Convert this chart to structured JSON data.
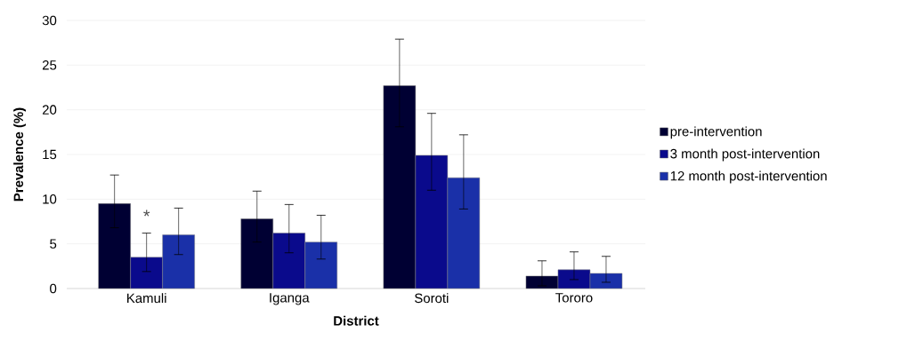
{
  "chart_data": {
    "type": "bar",
    "xlabel": "District",
    "ylabel": "Prevalence (%)",
    "categories": [
      "Kamuli",
      "Iganga",
      "Soroti",
      "Tororo"
    ],
    "series": [
      {
        "name": "pre-intervention",
        "color": "#000033",
        "values": [
          9.5,
          7.8,
          22.7,
          1.4
        ],
        "errors": [
          [
            6.8,
            12.7
          ],
          [
            5.2,
            10.9
          ],
          [
            18.1,
            27.9
          ],
          [
            0.3,
            3.1
          ]
        ]
      },
      {
        "name": "3 month post-intervention",
        "color": "#0a0a8c",
        "values": [
          3.5,
          6.2,
          14.9,
          2.1
        ],
        "errors": [
          [
            1.9,
            6.2
          ],
          [
            4.0,
            9.4
          ],
          [
            11.0,
            19.6
          ],
          [
            1.0,
            4.1
          ]
        ]
      },
      {
        "name": "12 month post-intervention",
        "color": "#1a30a8",
        "values": [
          6.0,
          5.2,
          12.4,
          1.7
        ],
        "errors": [
          [
            3.8,
            9.0
          ],
          [
            3.3,
            8.2
          ],
          [
            8.9,
            17.2
          ],
          [
            0.7,
            3.6
          ]
        ]
      }
    ],
    "ylim": [
      0,
      30
    ],
    "yticks": [
      0,
      5,
      10,
      15,
      20,
      25,
      30
    ],
    "grid": "y",
    "legend": "right",
    "annotations": [
      "*"
    ]
  }
}
